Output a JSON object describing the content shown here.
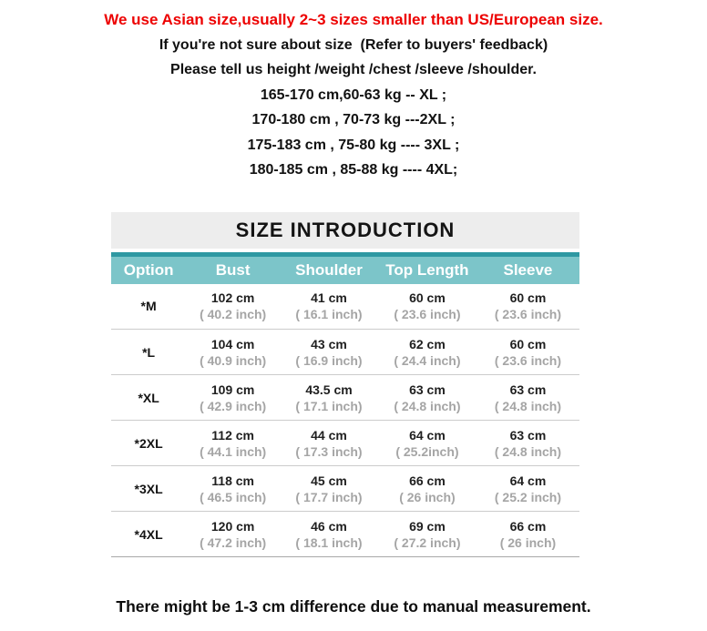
{
  "colors": {
    "warning_red": "#ed0000",
    "accent_dark_teal": "#2e98a2",
    "accent_light_teal": "#7cc5c9",
    "title_bar_gray": "#ededed",
    "row_border_gray": "#cccccc",
    "table_bottom_border": "#a8a8a8",
    "inch_text_gray": "#a5a5a5"
  },
  "notes": {
    "warning": "We use Asian size,usually 2~3 sizes smaller than US/European size.",
    "lines": [
      "If you're not sure about size  (Refer to buyers' feedback)",
      "Please tell us height /weight /chest /sleeve /shoulder.",
      "165-170 cm,60-63 kg -- XL ;",
      "170-180 cm , 70-73 kg ---2XL ;",
      "175-183 cm , 75-80 kg ---- 3XL ;",
      "180-185 cm , 85-88 kg ---- 4XL;"
    ]
  },
  "size_table": {
    "title": "SIZE INTRODUCTION",
    "columns": [
      "Option",
      "Bust",
      "Shoulder",
      "Top Length",
      "Sleeve"
    ],
    "rows": [
      {
        "option": "*M",
        "cells": [
          {
            "cm": "102 cm",
            "inch": "( 40.2 inch)"
          },
          {
            "cm": "41 cm",
            "inch": "( 16.1 inch)"
          },
          {
            "cm": "60 cm",
            "inch": "( 23.6 inch)"
          },
          {
            "cm": "60 cm",
            "inch": "( 23.6 inch)"
          }
        ]
      },
      {
        "option": "*L",
        "cells": [
          {
            "cm": "104 cm",
            "inch": "( 40.9 inch)"
          },
          {
            "cm": "43 cm",
            "inch": "( 16.9 inch)"
          },
          {
            "cm": "62 cm",
            "inch": "( 24.4 inch)"
          },
          {
            "cm": "60 cm",
            "inch": "( 23.6 inch)"
          }
        ]
      },
      {
        "option": "*XL",
        "cells": [
          {
            "cm": "109 cm",
            "inch": "( 42.9 inch)"
          },
          {
            "cm": "43.5 cm",
            "inch": "( 17.1 inch)"
          },
          {
            "cm": "63 cm",
            "inch": "( 24.8 inch)"
          },
          {
            "cm": "63 cm",
            "inch": "( 24.8 inch)"
          }
        ]
      },
      {
        "option": "*2XL",
        "cells": [
          {
            "cm": "112 cm",
            "inch": "( 44.1 inch)"
          },
          {
            "cm": "44 cm",
            "inch": "( 17.3 inch)"
          },
          {
            "cm": "64 cm",
            "inch": "( 25.2inch)"
          },
          {
            "cm": "63 cm",
            "inch": "( 24.8 inch)"
          }
        ]
      },
      {
        "option": "*3XL",
        "cells": [
          {
            "cm": "118 cm",
            "inch": "( 46.5 inch)"
          },
          {
            "cm": "45 cm",
            "inch": "( 17.7 inch)"
          },
          {
            "cm": "66 cm",
            "inch": "( 26 inch)"
          },
          {
            "cm": "64 cm",
            "inch": "( 25.2 inch)"
          }
        ]
      },
      {
        "option": "*4XL",
        "cells": [
          {
            "cm": "120 cm",
            "inch": "( 47.2 inch)"
          },
          {
            "cm": "46 cm",
            "inch": "( 18.1 inch)"
          },
          {
            "cm": "69 cm",
            "inch": "( 27.2 inch)"
          },
          {
            "cm": "66 cm",
            "inch": "( 26 inch)"
          }
        ]
      }
    ]
  },
  "footer": "There might be 1-3 cm difference due to manual measurement."
}
